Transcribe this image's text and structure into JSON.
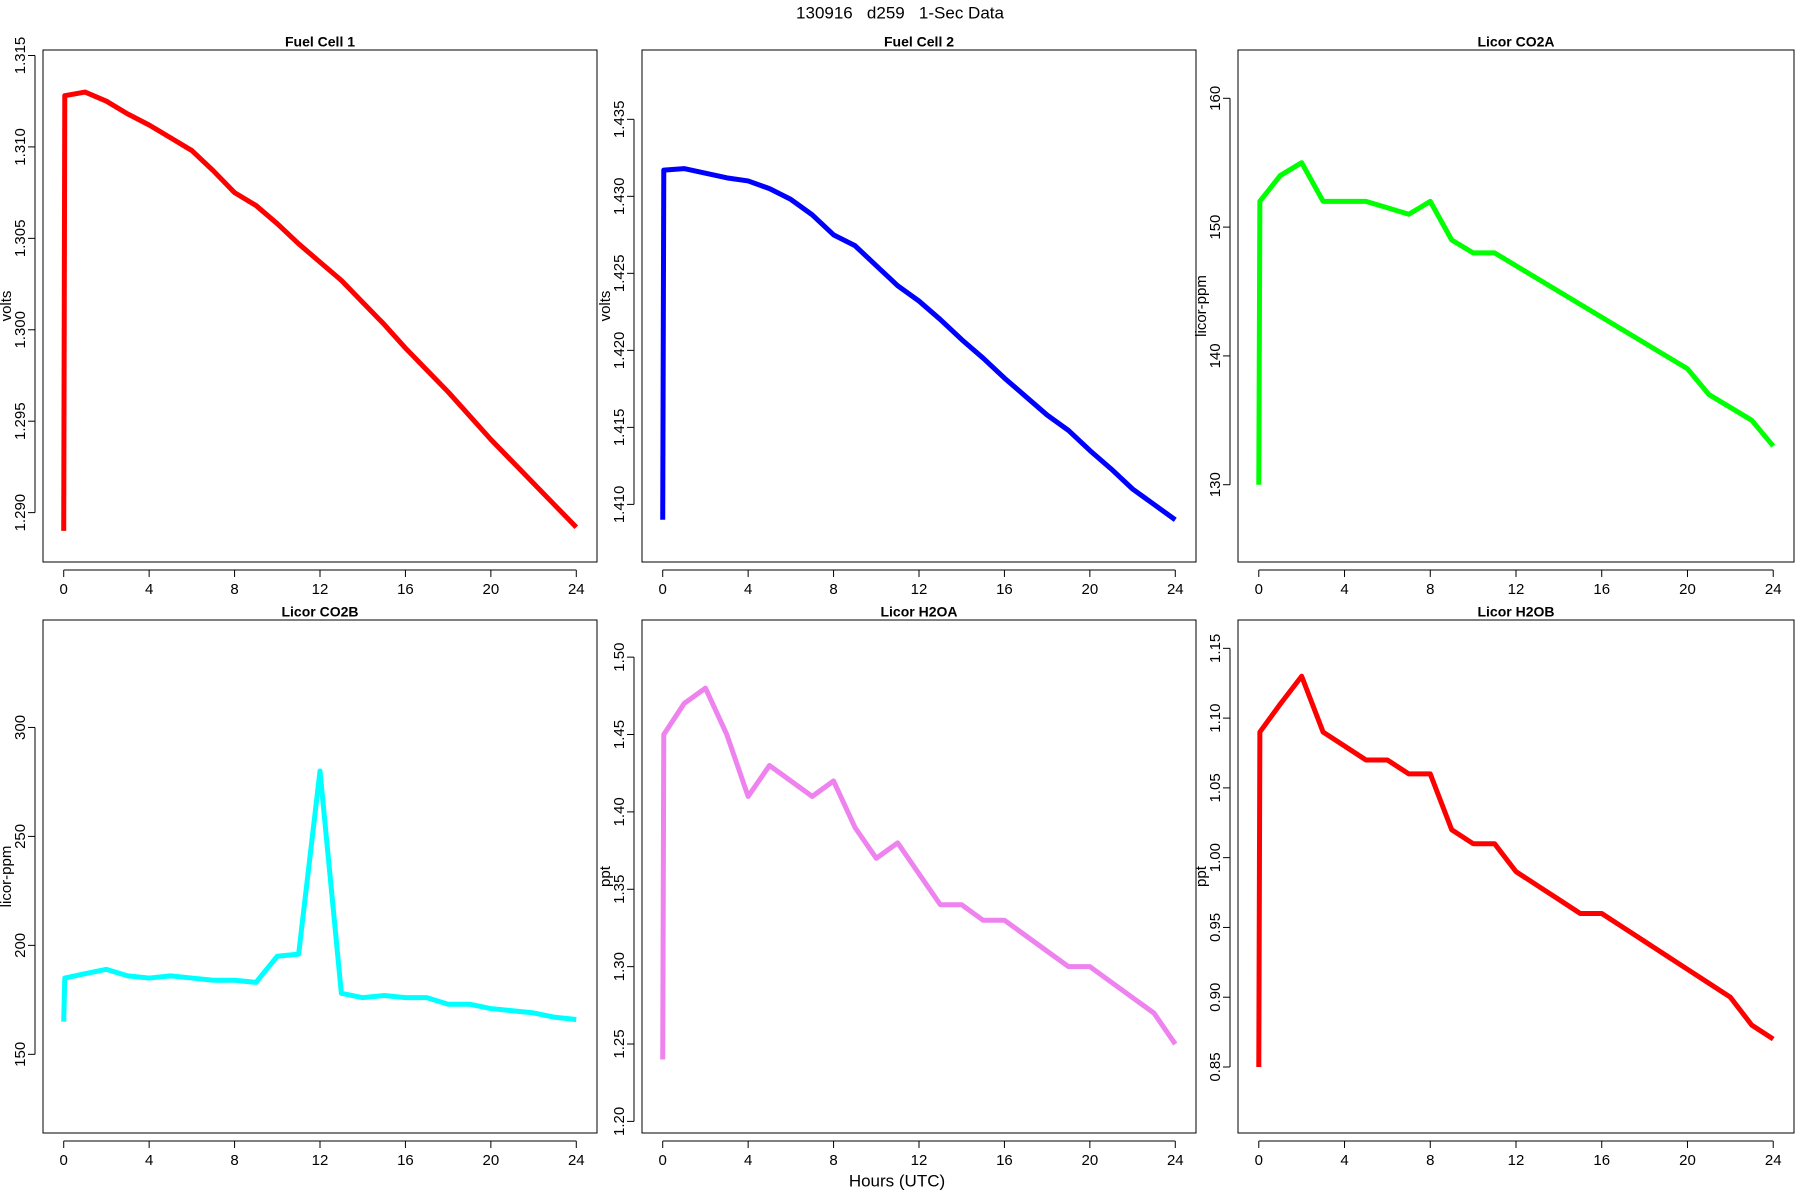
{
  "title": "130916   d259   1-Sec Data",
  "xlabel": "Hours (UTC)",
  "chart_data": [
    {
      "type": "line",
      "title": "Fuel Cell 1",
      "ylabel": "volts",
      "color": "#ff0000",
      "x": [
        0,
        0.05,
        1,
        2,
        3,
        4,
        5,
        6,
        7,
        8,
        9,
        10,
        11,
        12,
        13,
        14,
        15,
        16,
        17,
        18,
        19,
        20,
        21,
        22,
        23,
        24
      ],
      "values": [
        1.289,
        1.3128,
        1.313,
        1.3125,
        1.3118,
        1.3112,
        1.3105,
        1.3098,
        1.3087,
        1.3075,
        1.3068,
        1.3058,
        1.3047,
        1.3037,
        1.3027,
        1.3015,
        1.3003,
        1.299,
        1.2978,
        1.2966,
        1.2953,
        1.294,
        1.2928,
        1.2916,
        1.2904,
        1.2892
      ],
      "xlim": [
        -0.97,
        24.97
      ],
      "xticks": [
        0,
        4,
        8,
        12,
        16,
        20,
        24
      ],
      "ylim": [
        1.2873,
        1.3153
      ],
      "yticks": [
        {
          "value": 1.29,
          "label": "1.290"
        },
        1.295,
        {
          "value": 1.3,
          "label": "1.300"
        },
        1.305,
        {
          "value": 1.31,
          "label": "1.310"
        },
        1.315
      ]
    },
    {
      "type": "line",
      "title": "Fuel Cell 2",
      "ylabel": "volts",
      "color": "#0000ff",
      "x": [
        0,
        0.05,
        1,
        2,
        3,
        4,
        5,
        6,
        7,
        8,
        9,
        10,
        11,
        12,
        13,
        14,
        15,
        16,
        17,
        18,
        19,
        20,
        21,
        22,
        23,
        24
      ],
      "values": [
        1.409,
        1.4317,
        1.4318,
        1.4315,
        1.4312,
        1.431,
        1.4305,
        1.4298,
        1.4288,
        1.4275,
        1.4268,
        1.4255,
        1.4242,
        1.4232,
        1.422,
        1.4207,
        1.4195,
        1.4182,
        1.417,
        1.4158,
        1.4148,
        1.4135,
        1.4123,
        1.411,
        1.41,
        1.409
      ],
      "xlim": [
        -0.97,
        24.97
      ],
      "xticks": [
        0,
        4,
        8,
        12,
        16,
        20,
        24
      ],
      "ylim": [
        1.40626,
        1.4395
      ],
      "yticks": [
        {
          "value": 1.41,
          "label": "1.410"
        },
        1.415,
        {
          "value": 1.42,
          "label": "1.420"
        },
        1.425,
        {
          "value": 1.43,
          "label": "1.430"
        },
        1.435
      ]
    },
    {
      "type": "line",
      "title": "Licor CO2A",
      "ylabel": "licor-ppm",
      "color": "#00ff00",
      "x": [
        0,
        0.05,
        1,
        2,
        3,
        4,
        5,
        6,
        7,
        8,
        9,
        10,
        11,
        12,
        13,
        14,
        15,
        16,
        17,
        18,
        19,
        20,
        21,
        22,
        23,
        24
      ],
      "values": [
        130,
        152,
        154,
        155,
        152,
        152,
        152,
        151.5,
        151,
        152,
        149,
        148,
        148,
        147,
        146,
        145,
        144,
        143,
        142,
        141,
        140,
        139,
        137,
        136,
        135,
        133
      ],
      "xlim": [
        -0.97,
        24.97
      ],
      "xticks": [
        0,
        4,
        8,
        12,
        16,
        20,
        24
      ],
      "ylim": [
        124,
        163.75
      ],
      "yticks": [
        130,
        140,
        150,
        160
      ]
    },
    {
      "type": "line",
      "title": "Licor CO2B",
      "ylabel": "licor-ppm",
      "color": "#00ffff",
      "x": [
        0,
        0.05,
        1,
        2,
        3,
        4,
        5,
        6,
        7,
        8,
        9,
        10,
        11,
        12,
        13,
        14,
        15,
        16,
        17,
        18,
        19,
        20,
        21,
        22,
        23,
        24
      ],
      "values": [
        165,
        185,
        187,
        189,
        186,
        185,
        186,
        185,
        184,
        184,
        183,
        195,
        196,
        280,
        178,
        176,
        177,
        176,
        176,
        173,
        173,
        171,
        170,
        169,
        167,
        166
      ],
      "xlim": [
        -0.97,
        24.97
      ],
      "xticks": [
        0,
        4,
        8,
        12,
        16,
        20,
        24
      ],
      "ylim": [
        113.9,
        349.3
      ],
      "yticks": [
        150,
        200,
        250,
        300
      ]
    },
    {
      "type": "line",
      "title": "Licor H2OA",
      "ylabel": "ppt",
      "color": "#ee82ee",
      "x": [
        0,
        0.05,
        1,
        2,
        3,
        4,
        5,
        6,
        7,
        8,
        9,
        10,
        11,
        12,
        13,
        14,
        15,
        16,
        17,
        18,
        19,
        20,
        21,
        22,
        23,
        24
      ],
      "values": [
        1.24,
        1.45,
        1.47,
        1.48,
        1.45,
        1.41,
        1.43,
        1.42,
        1.41,
        1.42,
        1.39,
        1.37,
        1.38,
        1.36,
        1.34,
        1.34,
        1.33,
        1.33,
        1.32,
        1.31,
        1.3,
        1.3,
        1.29,
        1.28,
        1.27,
        1.25
      ],
      "xlim": [
        -0.97,
        24.97
      ],
      "xticks": [
        0,
        4,
        8,
        12,
        16,
        20,
        24
      ],
      "ylim": [
        1.1925,
        1.524
      ],
      "yticks": [
        {
          "value": 1.2,
          "label": "1.20"
        },
        1.25,
        {
          "value": 1.3,
          "label": "1.30"
        },
        1.35,
        {
          "value": 1.4,
          "label": "1.40"
        },
        1.45,
        {
          "value": 1.5,
          "label": "1.50"
        }
      ]
    },
    {
      "type": "line",
      "title": "Licor H2OB",
      "ylabel": "ppt",
      "color": "#ff0000",
      "x": [
        0,
        0.05,
        1,
        2,
        3,
        4,
        5,
        6,
        7,
        8,
        9,
        10,
        11,
        12,
        13,
        14,
        15,
        16,
        17,
        18,
        19,
        20,
        21,
        22,
        23,
        24
      ],
      "values": [
        0.85,
        1.09,
        1.11,
        1.13,
        1.09,
        1.08,
        1.07,
        1.07,
        1.06,
        1.06,
        1.02,
        1.01,
        1.01,
        0.99,
        0.98,
        0.97,
        0.96,
        0.96,
        0.95,
        0.94,
        0.93,
        0.92,
        0.91,
        0.9,
        0.88,
        0.87
      ],
      "xlim": [
        -0.97,
        24.97
      ],
      "xticks": [
        0,
        4,
        8,
        12,
        16,
        20,
        24
      ],
      "ylim": [
        0.8027,
        1.1703
      ],
      "yticks": [
        0.85,
        {
          "value": 0.9,
          "label": "0.90"
        },
        0.95,
        {
          "value": 1,
          "label": "1.00"
        },
        1.05,
        {
          "value": 1.1,
          "label": "1.10"
        },
        1.15
      ]
    }
  ]
}
